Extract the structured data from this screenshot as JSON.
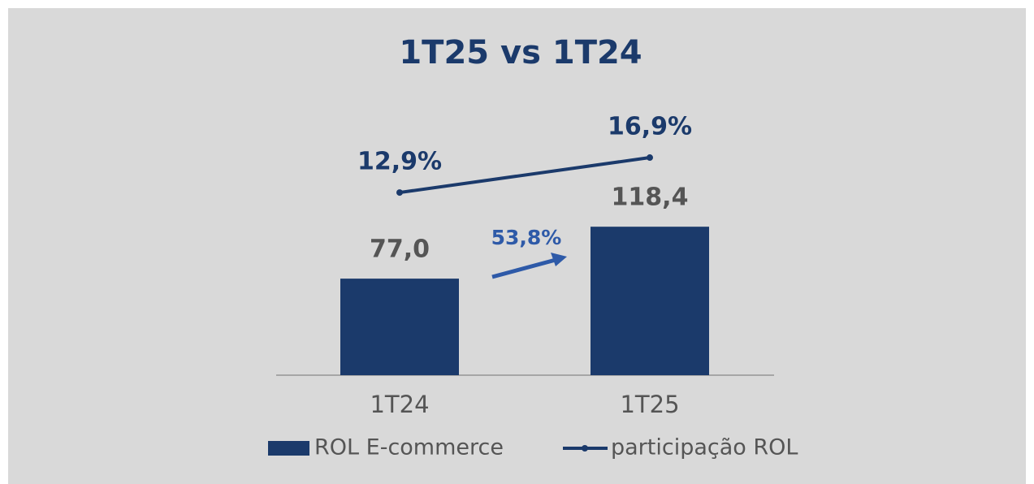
{
  "chart_data": {
    "type": "bar",
    "title": "1T25 vs 1T24",
    "categories": [
      "1T24",
      "1T25"
    ],
    "series": [
      {
        "name": "ROL E-commerce",
        "color": "#1b3a6b",
        "values": [
          77.0,
          118.4
        ],
        "value_labels": [
          "77,0",
          "118,4"
        ]
      },
      {
        "name": "participação ROL",
        "type": "line",
        "axis": "y2",
        "color": "#1b3a6b",
        "values": [
          12.9,
          16.9
        ],
        "value_labels": [
          "12,9%",
          "16,9%"
        ]
      }
    ],
    "annotations": [
      "53,8%"
    ],
    "ylim": [
      0,
      215
    ],
    "y2lim": [
      -8,
      22.85
    ],
    "legend": "bottom"
  }
}
